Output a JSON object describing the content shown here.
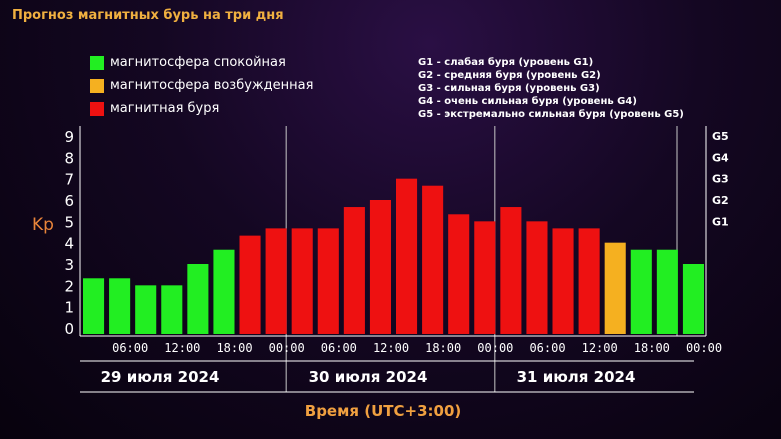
{
  "title": "Прогноз магнитных бурь на три дня",
  "legend": [
    {
      "label": "магнитосфера спокойная",
      "color": "#22ee22"
    },
    {
      "label": "магнитосфера возбужденная",
      "color": "#f5b020"
    },
    {
      "label": "магнитная буря",
      "color": "#ee1111"
    }
  ],
  "g_legend": [
    "G1 - слабая буря (уровень G1)",
    "G2 - средняя буря (уровень G2)",
    "G3 - сильная буря (уровень G3)",
    "G4 - очень сильная буря (уровень G4)",
    "G5 - экстремально сильная буря (уровень G5)"
  ],
  "chart_data": {
    "type": "bar",
    "ylabel": "Kp",
    "xlabel": "Время (UTC+3:00)",
    "ylim": [
      0,
      9
    ],
    "y_ticks": [
      "0",
      "1",
      "2",
      "3",
      "4",
      "5",
      "6",
      "7",
      "8",
      "9"
    ],
    "g_ticks": [
      {
        "label": "G1",
        "value": 5
      },
      {
        "label": "G2",
        "value": 6
      },
      {
        "label": "G3",
        "value": 7
      },
      {
        "label": "G4",
        "value": 8
      },
      {
        "label": "G5",
        "value": 9
      }
    ],
    "x_tick_labels": [
      "06:00",
      "12:00",
      "18:00",
      "00:00",
      "06:00",
      "12:00",
      "18:00",
      "00:00",
      "06:00",
      "12:00",
      "18:00",
      "00:00"
    ],
    "days": [
      "29 июля 2024",
      "30 июля 2024",
      "31 июля 2024"
    ],
    "values": [
      2.33,
      2.33,
      2.0,
      2.0,
      3.0,
      3.67,
      4.33,
      4.67,
      4.67,
      4.67,
      5.67,
      6.0,
      7.0,
      6.67,
      5.33,
      5.0,
      5.67,
      5.0,
      4.67,
      4.67,
      4.0,
      3.67,
      3.67,
      3.0
    ],
    "levels": [
      "quiet",
      "quiet",
      "quiet",
      "quiet",
      "quiet",
      "quiet",
      "storm",
      "storm",
      "storm",
      "storm",
      "storm",
      "storm",
      "storm",
      "storm",
      "storm",
      "storm",
      "storm",
      "storm",
      "storm",
      "storm",
      "active",
      "quiet",
      "quiet",
      "quiet"
    ],
    "colors": {
      "quiet": "#22ee22",
      "active": "#f5b020",
      "storm": "#ee1111"
    }
  }
}
